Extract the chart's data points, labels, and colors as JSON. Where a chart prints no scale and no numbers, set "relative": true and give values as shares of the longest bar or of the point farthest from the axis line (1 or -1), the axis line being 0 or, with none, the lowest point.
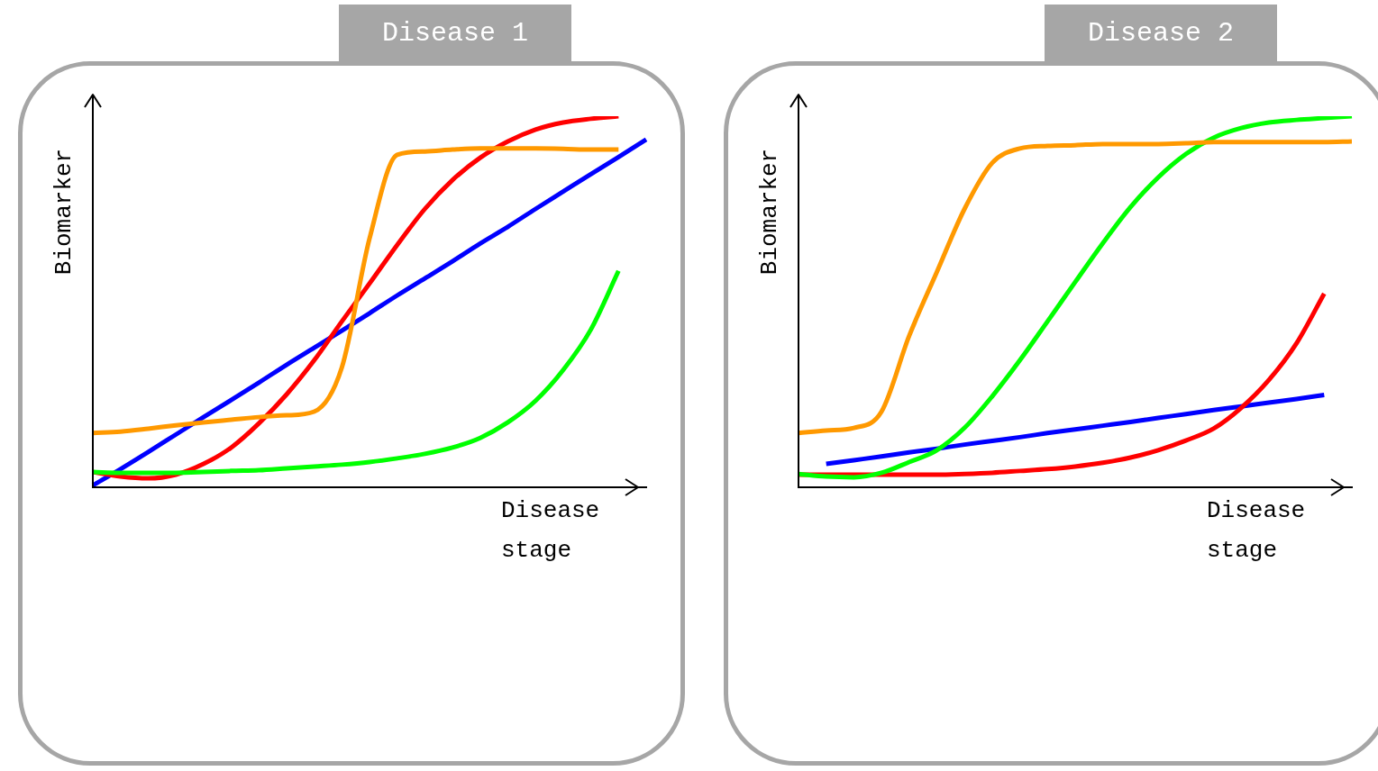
{
  "chart_data": [
    {
      "type": "line",
      "title": "Disease 1",
      "xlabel": "Disease stage",
      "ylabel": "Biomarker",
      "relative": true,
      "legend": false,
      "marker": "none",
      "tick_labels": false,
      "categories": [
        null,
        null,
        null,
        null,
        null,
        null,
        null,
        null,
        null,
        null,
        null,
        null,
        null,
        null,
        null,
        null,
        null,
        null,
        null,
        null,
        null
      ],
      "series": [
        {
          "color": "#ff9900",
          "values": [
            0.146,
            0.15,
            0.158,
            0.167,
            0.175,
            0.182,
            0.189,
            0.194,
            0.204,
            0.323,
            0.67,
            0.896,
            0.905,
            0.91,
            0.913,
            0.913,
            0.913,
            0.912,
            0.91,
            0.91,
            null
          ]
        },
        {
          "color": "#00ff00",
          "values": [
            0.041,
            0.039,
            0.039,
            0.039,
            0.041,
            0.044,
            0.046,
            0.051,
            0.056,
            0.061,
            0.068,
            0.078,
            0.09,
            0.107,
            0.133,
            0.175,
            0.233,
            0.316,
            0.425,
            0.583,
            null
          ]
        },
        {
          "color": "#ff0000",
          "values": [
            0.041,
            0.029,
            0.024,
            0.034,
            0.063,
            0.107,
            0.172,
            0.25,
            0.342,
            0.447,
            0.549,
            0.653,
            0.75,
            0.828,
            0.888,
            0.932,
            0.964,
            0.983,
            0.993,
            1,
            null
          ]
        },
        {
          "color": "#0000ff",
          "values": [
            0.005,
            0.049,
            0.095,
            0.142,
            0.189,
            0.235,
            0.282,
            0.33,
            0.376,
            0.422,
            0.469,
            0.517,
            0.563,
            0.609,
            0.657,
            0.702,
            0.75,
            0.797,
            0.844,
            0.89,
            0.937
          ]
        }
      ]
    },
    {
      "type": "line",
      "title": "Disease 2",
      "xlabel": "Disease stage",
      "ylabel": "Biomarker",
      "relative": true,
      "legend": false,
      "marker": "none",
      "tick_labels": false,
      "categories": [
        null,
        null,
        null,
        null,
        null,
        null,
        null,
        null,
        null,
        null,
        null,
        null,
        null,
        null,
        null,
        null,
        null,
        null,
        null,
        null,
        null
      ],
      "series": [
        {
          "color": "#ff9900",
          "values": [
            0.146,
            0.153,
            0.16,
            0.204,
            0.408,
            0.58,
            0.75,
            0.874,
            0.913,
            0.92,
            0.922,
            0.925,
            0.925,
            0.925,
            0.927,
            0.93,
            0.93,
            0.93,
            0.93,
            0.93,
            0.932
          ]
        },
        {
          "color": "#00ff00",
          "values": [
            0.036,
            0.029,
            0.027,
            0.039,
            0.068,
            0.1,
            0.16,
            0.245,
            0.342,
            0.447,
            0.553,
            0.658,
            0.755,
            0.835,
            0.898,
            0.942,
            0.968,
            0.983,
            0.99,
            0.995,
            1
          ]
        },
        {
          "color": "#ff0000",
          "values": [
            0.034,
            0.034,
            0.034,
            0.034,
            0.034,
            0.034,
            0.036,
            0.039,
            0.044,
            0.049,
            0.056,
            0.066,
            0.08,
            0.1,
            0.126,
            0.158,
            0.214,
            0.289,
            0.388,
            0.522,
            null
          ]
        },
        {
          "color": "#0000ff",
          "values": [
            null,
            0.063,
            0.073,
            0.083,
            0.094,
            0.104,
            0.115,
            0.125,
            0.135,
            0.146,
            0.156,
            0.166,
            0.176,
            0.187,
            0.197,
            0.208,
            0.218,
            0.228,
            0.238,
            0.249,
            null
          ]
        }
      ]
    }
  ]
}
